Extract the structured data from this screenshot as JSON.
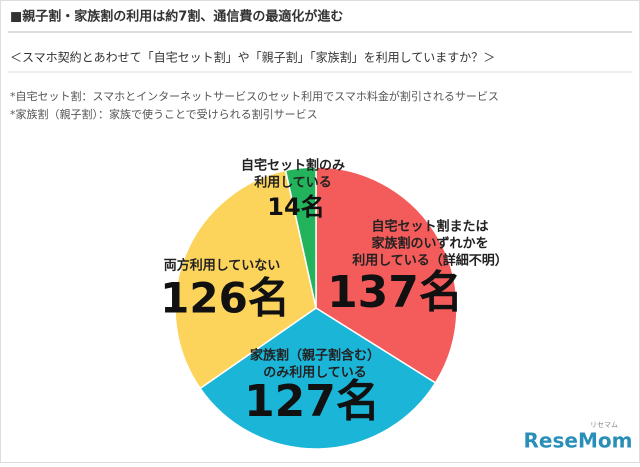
{
  "chart_data": {
    "type": "pie",
    "title": "■親子割・家族割の利用は約7割、通信費の最適化が進む",
    "subtitle": "＜スマホ契約とあわせて「自宅セット割」や「親子割」「家族割」を利用していますか？＞",
    "notes": [
      "*自宅セット割：スマホとインターネットサービスのセット利用でスマホ料金が割引されるサービス",
      "*家族割（親子割）：家族で使うことで受けられる割引サービス"
    ],
    "categories": [
      [
        "自宅セット割または",
        "家族割のいずれかを",
        "利用している（詳細不明）"
      ],
      [
        "家族割（親子割含む）",
        "のみ利用している"
      ],
      [
        "両方利用していない"
      ],
      [
        "自宅セット割のみ",
        "利用している"
      ]
    ],
    "values": [
      137,
      127,
      126,
      14
    ],
    "value_labels": [
      "137名",
      "127名",
      "126名",
      "14名"
    ],
    "colors": [
      "#f45b5b",
      "#1bb5d8",
      "#fdd45b",
      "#22b35c"
    ],
    "logo": {
      "small": "リセマム",
      "main": "ReseMom"
    }
  }
}
